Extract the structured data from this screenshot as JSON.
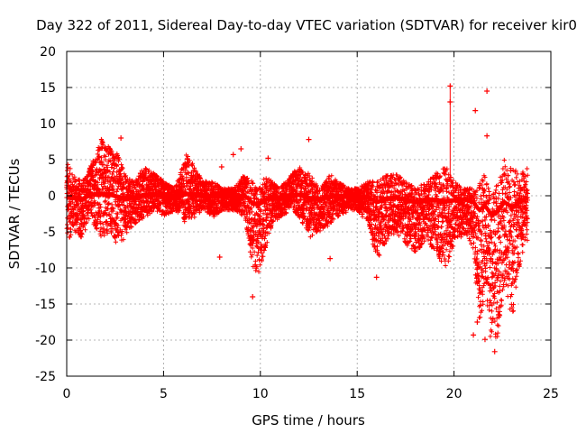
{
  "chart_data": {
    "type": "scatter",
    "title": "Day 322 of 2011, Sidereal Day-to-day VTEC variation (SDTVAR) for receiver kir0",
    "xlabel": "GPS time / hours",
    "ylabel": "SDTVAR / TECUs",
    "xlim": [
      0,
      25
    ],
    "ylim": [
      -25,
      20
    ],
    "xticks": [
      0,
      5,
      10,
      15,
      20,
      25
    ],
    "yticks": [
      -25,
      -20,
      -15,
      -10,
      -5,
      0,
      5,
      10,
      15,
      20
    ],
    "grid": true,
    "marker": "+",
    "color": "#ff0000",
    "envelope": {
      "x": [
        0,
        0.3,
        0.8,
        1.2,
        1.8,
        2.2,
        2.6,
        3.0,
        3.5,
        4.0,
        4.6,
        5.0,
        5.6,
        6.2,
        6.6,
        7.0,
        7.6,
        8.0,
        8.6,
        9.2,
        9.6,
        9.9,
        10.3,
        10.6,
        11.0,
        11.6,
        12.0,
        12.6,
        13.0,
        13.6,
        14.0,
        14.6,
        15.0,
        15.6,
        16.0,
        16.6,
        17.0,
        17.6,
        18.0,
        18.6,
        19.0,
        19.6,
        20.0,
        20.6,
        21.0,
        21.3,
        21.6,
        21.9,
        22.2,
        22.6,
        23.0,
        23.4,
        23.8
      ],
      "upper": [
        5,
        3,
        2,
        4,
        8,
        7,
        6,
        3,
        2,
        4,
        3,
        2,
        1,
        6,
        4,
        2,
        2,
        1,
        1,
        3,
        2,
        1,
        3,
        2,
        1,
        3,
        4,
        3,
        1,
        3,
        2,
        1,
        1,
        2,
        2,
        3,
        3,
        2,
        1,
        2,
        3,
        4,
        2,
        1,
        1,
        2,
        3,
        0,
        2,
        5,
        4,
        3,
        4
      ],
      "lower": [
        -7,
        -5,
        -6,
        -3,
        -6,
        -5,
        -7,
        -6,
        -4,
        -3,
        -2,
        -3,
        -2,
        -4,
        -3,
        -2,
        -3,
        -2,
        -2,
        -3,
        -10,
        -11,
        -7,
        -4,
        -3,
        -2,
        -3,
        -6,
        -5,
        -4,
        -3,
        -2,
        -2,
        -4,
        -9,
        -6,
        -5,
        -7,
        -8,
        -6,
        -8,
        -10,
        -7,
        -5,
        -8,
        -18,
        -14,
        -20,
        -21,
        -12,
        -17,
        -10,
        -6
      ]
    },
    "outliers": [
      {
        "x": 2.8,
        "y": 8
      },
      {
        "x": 7.9,
        "y": -8.5
      },
      {
        "x": 8.0,
        "y": 4
      },
      {
        "x": 8.6,
        "y": 5.7
      },
      {
        "x": 9.0,
        "y": 6.5
      },
      {
        "x": 9.6,
        "y": -14
      },
      {
        "x": 10.4,
        "y": 5.2
      },
      {
        "x": 12.5,
        "y": 7.8
      },
      {
        "x": 13.6,
        "y": -8.7
      },
      {
        "x": 16.0,
        "y": -11.3
      },
      {
        "x": 19.8,
        "y": 15.2
      },
      {
        "x": 19.8,
        "y": 13
      },
      {
        "x": 21.1,
        "y": 11.8
      },
      {
        "x": 21.7,
        "y": 14.5
      },
      {
        "x": 21.7,
        "y": 8.3
      },
      {
        "x": 21.0,
        "y": -19.3
      },
      {
        "x": 21.6,
        "y": -19.9
      },
      {
        "x": 22.1,
        "y": -21.6
      },
      {
        "x": 21.2,
        "y": -17.5
      },
      {
        "x": 22.3,
        "y": -16.5
      }
    ]
  }
}
